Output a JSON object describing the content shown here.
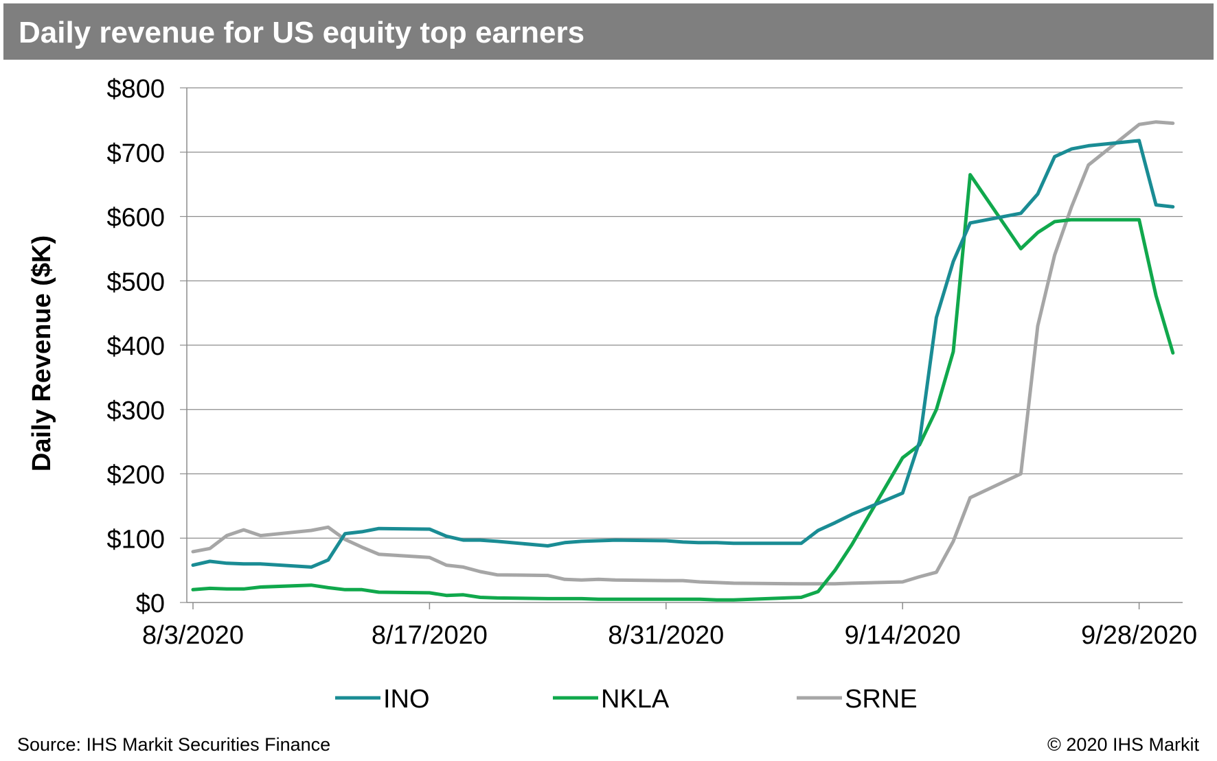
{
  "header": {
    "title": "Daily revenue for US equity top earners"
  },
  "footer": {
    "source": "Source: IHS Markit Securities Finance",
    "copyright": "© 2020 IHS Markit"
  },
  "chart_data": {
    "type": "line",
    "title": "Daily revenue for US equity top earners",
    "xlabel": "",
    "ylabel": "Daily Revenue ($K)",
    "ylim": [
      0,
      800
    ],
    "yticks": [
      0,
      100,
      200,
      300,
      400,
      500,
      600,
      700,
      800
    ],
    "ytick_labels": [
      "$0",
      "$100",
      "$200",
      "$300",
      "$400",
      "$500",
      "$600",
      "$700",
      "$800"
    ],
    "xtick_labels": [
      "8/3/2020",
      "8/17/2020",
      "8/31/2020",
      "9/14/2020",
      "9/28/2020"
    ],
    "xticks": [
      "2020-08-03",
      "2020-08-17",
      "2020-08-31",
      "2020-09-14",
      "2020-09-28"
    ],
    "xlim": [
      "2020-08-03",
      "2020-09-30"
    ],
    "grid": "horizontal",
    "legend_position": "bottom",
    "x": [
      "2020-08-03",
      "2020-08-04",
      "2020-08-05",
      "2020-08-06",
      "2020-08-07",
      "2020-08-10",
      "2020-08-11",
      "2020-08-12",
      "2020-08-13",
      "2020-08-14",
      "2020-08-17",
      "2020-08-18",
      "2020-08-19",
      "2020-08-20",
      "2020-08-21",
      "2020-08-24",
      "2020-08-25",
      "2020-08-26",
      "2020-08-27",
      "2020-08-28",
      "2020-08-31",
      "2020-09-01",
      "2020-09-02",
      "2020-09-03",
      "2020-09-04",
      "2020-09-08",
      "2020-09-09",
      "2020-09-10",
      "2020-09-11",
      "2020-09-14",
      "2020-09-15",
      "2020-09-16",
      "2020-09-17",
      "2020-09-18",
      "2020-09-21",
      "2020-09-22",
      "2020-09-23",
      "2020-09-24",
      "2020-09-25",
      "2020-09-28",
      "2020-09-29",
      "2020-09-30"
    ],
    "series": [
      {
        "name": "INO",
        "color": "#1a8c94",
        "values": [
          58,
          64,
          61,
          60,
          60,
          55,
          66,
          107,
          110,
          115,
          114,
          103,
          97,
          97,
          95,
          88,
          93,
          95,
          96,
          97,
          96,
          94,
          93,
          93,
          92,
          92,
          112,
          124,
          137,
          170,
          250,
          443,
          530,
          590,
          605,
          635,
          693,
          705,
          710,
          718,
          618,
          615
        ]
      },
      {
        "name": "NKLA",
        "color": "#10a84c",
        "values": [
          20,
          22,
          21,
          21,
          24,
          27,
          23,
          20,
          20,
          16,
          15,
          11,
          12,
          8,
          7,
          6,
          6,
          6,
          5,
          5,
          5,
          5,
          5,
          4,
          4,
          8,
          17,
          50,
          90,
          225,
          245,
          300,
          390,
          665,
          550,
          575,
          592,
          595,
          595,
          595,
          477,
          388
        ]
      },
      {
        "name": "SRNE",
        "color": "#a6a6a6",
        "values": [
          79,
          84,
          104,
          113,
          104,
          112,
          117,
          98,
          86,
          75,
          70,
          58,
          55,
          48,
          43,
          42,
          36,
          35,
          36,
          35,
          34,
          34,
          32,
          31,
          30,
          29,
          29,
          29,
          30,
          32,
          40,
          47,
          95,
          163,
          200,
          430,
          540,
          615,
          680,
          743,
          747,
          745
        ]
      }
    ]
  }
}
